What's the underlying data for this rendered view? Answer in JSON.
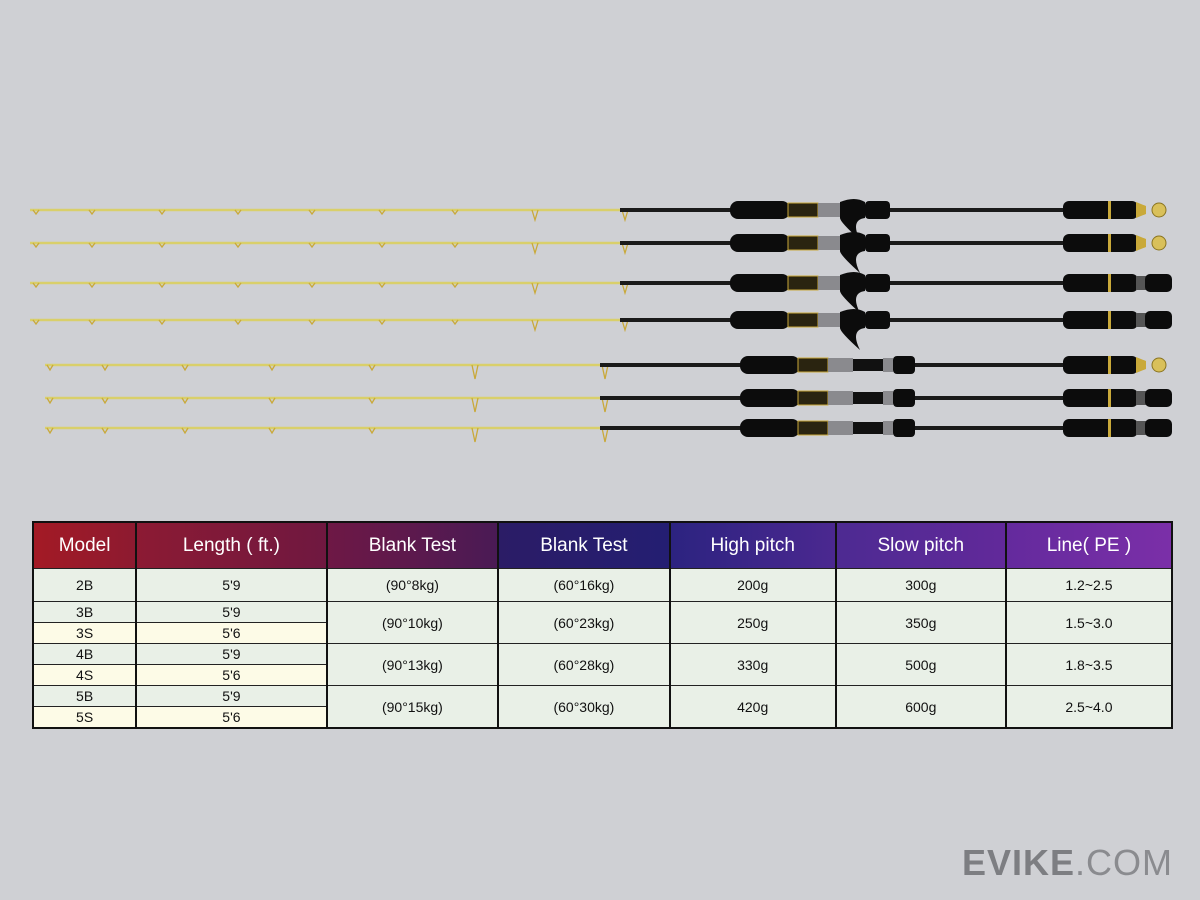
{
  "rods": [
    {
      "model": "2B",
      "type": "casting",
      "butt": "gimbal"
    },
    {
      "model": "2B",
      "type": "casting",
      "butt": "gimbal"
    },
    {
      "model": "3B",
      "type": "casting",
      "butt": "detachable"
    },
    {
      "model": "4B",
      "type": "casting",
      "butt": "detachable"
    },
    {
      "model": "S",
      "type": "spinning",
      "butt": "gimbal"
    },
    {
      "model": "S",
      "type": "spinning",
      "butt": "detachable"
    },
    {
      "model": "S",
      "type": "spinning",
      "butt": "detachable"
    }
  ],
  "colors": {
    "blank": "#d9cf6a",
    "grip": "#0c0c0c",
    "gold": "#c9a93a",
    "trim": "#8a8a8e"
  },
  "table": {
    "headers": [
      "Model",
      "Length ( ft.)",
      "Blank Test",
      "Blank Test",
      "High pitch",
      "Slow pitch",
      "Line( PE )"
    ],
    "rows": [
      {
        "models": [
          {
            "model": "2B",
            "length": "5'9"
          }
        ],
        "blank90": "(90°8kg)",
        "blank60": "(60°16kg)",
        "high": "200g",
        "slow": "300g",
        "line": "1.2~2.5"
      },
      {
        "models": [
          {
            "model": "3B",
            "length": "5'9"
          },
          {
            "model": "3S",
            "length": "5'6"
          }
        ],
        "blank90": "(90°10kg)",
        "blank60": "(60°23kg)",
        "high": "250g",
        "slow": "350g",
        "line": "1.5~3.0"
      },
      {
        "models": [
          {
            "model": "4B",
            "length": "5'9"
          },
          {
            "model": "4S",
            "length": "5'6"
          }
        ],
        "blank90": "(90°13kg)",
        "blank60": "(60°28kg)",
        "high": "330g",
        "slow": "500g",
        "line": "1.8~3.5"
      },
      {
        "models": [
          {
            "model": "5B",
            "length": "5'9"
          },
          {
            "model": "5S",
            "length": "5'6"
          }
        ],
        "blank90": "(90°15kg)",
        "blank60": "(60°30kg)",
        "high": "420g",
        "slow": "600g",
        "line": "2.5~4.0"
      }
    ]
  },
  "watermark": {
    "brand": "EVIKE",
    "suffix": ".COM"
  }
}
